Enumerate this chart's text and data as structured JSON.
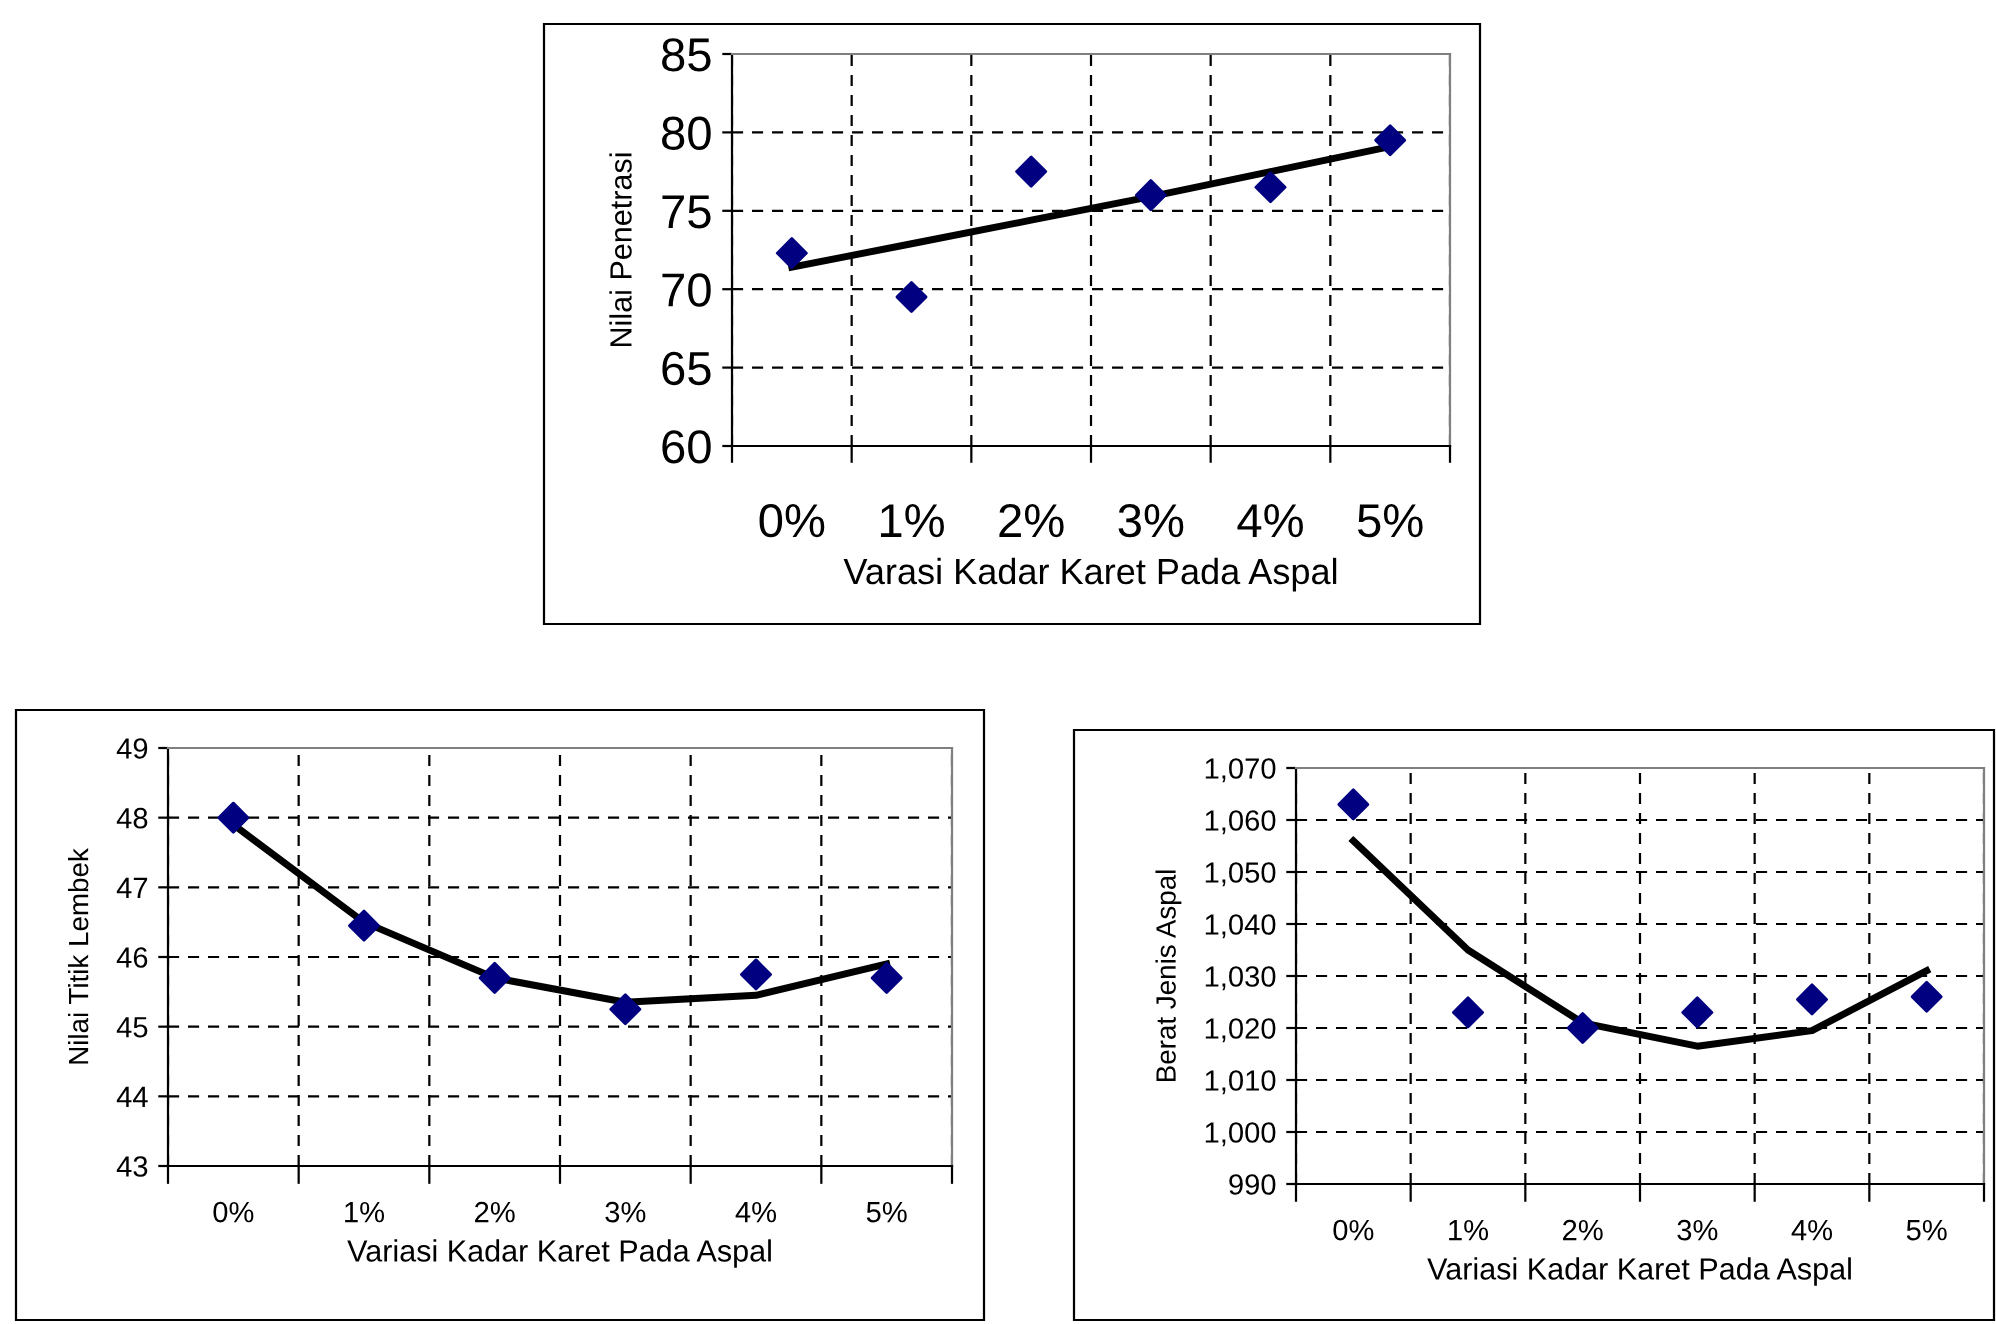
{
  "chart_data": [
    {
      "type": "scatter",
      "xlabel": "Varasi Kadar Karet Pada Aspal",
      "ylabel": "Nilai Penetrasi",
      "categories": [
        "0%",
        "1%",
        "2%",
        "3%",
        "4%",
        "5%"
      ],
      "ylim": [
        60,
        85
      ],
      "yticks": [
        60,
        65,
        70,
        75,
        80,
        85
      ],
      "grid": true,
      "marker": "diamond",
      "series": [
        {
          "color": "#000080",
          "values": [
            72.3,
            69.5,
            77.5,
            76.0,
            76.5,
            79.5
          ]
        },
        {
          "type": "line",
          "color": "#000000",
          "marker": "none",
          "line_style": "solid",
          "values": [
            71.4,
            72.9,
            74.4,
            75.9,
            77.5,
            79.1
          ]
        }
      ]
    },
    {
      "type": "scatter",
      "xlabel": "Variasi Kadar Karet Pada Aspal",
      "ylabel": "Nilai Titik Lembek",
      "categories": [
        "0%",
        "1%",
        "2%",
        "3%",
        "4%",
        "5%"
      ],
      "ylim": [
        43,
        49
      ],
      "yticks": [
        43,
        44,
        45,
        46,
        47,
        48,
        49
      ],
      "grid": true,
      "marker": "diamond",
      "series": [
        {
          "color": "#000080",
          "values": [
            48.0,
            46.45,
            45.7,
            45.25,
            45.75,
            45.7
          ]
        },
        {
          "type": "line",
          "color": "#000000",
          "marker": "none",
          "line_style": "solid",
          "values": [
            47.9,
            46.5,
            45.7,
            45.35,
            45.45,
            45.9
          ]
        }
      ]
    },
    {
      "type": "scatter",
      "xlabel": "Variasi Kadar Karet Pada Aspal",
      "ylabel": "Berat Jenis Aspal",
      "categories": [
        "0%",
        "1%",
        "2%",
        "3%",
        "4%",
        "5%"
      ],
      "ylim": [
        990,
        1070
      ],
      "yticks": [
        990,
        {
          "value": 1000,
          "label": "1,000"
        },
        {
          "value": 1010,
          "label": "1,010"
        },
        {
          "value": 1020,
          "label": "1,020"
        },
        {
          "value": 1030,
          "label": "1,030"
        },
        {
          "value": 1040,
          "label": "1,040"
        },
        {
          "value": 1050,
          "label": "1,050"
        },
        {
          "value": 1060,
          "label": "1,060"
        },
        {
          "value": 1070,
          "label": "1,070"
        }
      ],
      "grid": true,
      "marker": "diamond",
      "series": [
        {
          "color": "#000080",
          "values": [
            1063,
            1023,
            1020,
            1023,
            1025.5,
            1026
          ]
        },
        {
          "type": "line",
          "color": "#000000",
          "marker": "none",
          "line_style": "solid",
          "values": [
            1056,
            1035,
            1021,
            1016.5,
            1019.5,
            1031
          ]
        }
      ]
    }
  ]
}
